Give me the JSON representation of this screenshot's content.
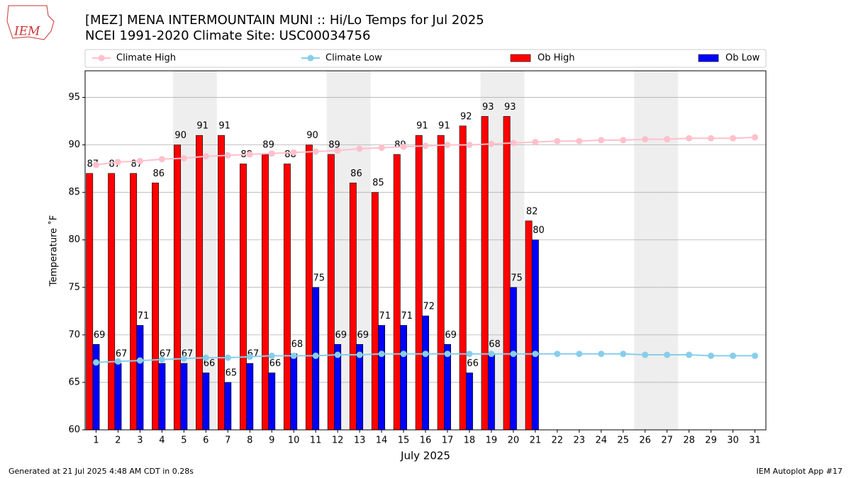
{
  "chart_data": {
    "type": "bar",
    "title": "[MEZ] MENA INTERMOUNTAIN MUNI :: Hi/Lo Temps for Jul 2025",
    "subtitle": "NCEI 1991-2020 Climate Site: USC00034756",
    "logo": "IEM",
    "x_label": "July 2025",
    "y_label": "Temperature ˚F",
    "footer_left": "Generated at 21 Jul 2025 4:48 AM CDT in 0.28s",
    "footer_right": "IEM Autoplot App #17",
    "x": [
      1,
      2,
      3,
      4,
      5,
      6,
      7,
      8,
      9,
      10,
      11,
      12,
      13,
      14,
      15,
      16,
      17,
      18,
      19,
      20,
      21,
      22,
      23,
      24,
      25,
      26,
      27,
      28,
      29,
      30,
      31
    ],
    "xlim": [
      0.5,
      31.5
    ],
    "xticks": [
      1,
      2,
      3,
      4,
      5,
      6,
      7,
      8,
      9,
      10,
      11,
      12,
      13,
      14,
      15,
      16,
      17,
      18,
      19,
      20,
      21,
      22,
      23,
      24,
      25,
      26,
      27,
      28,
      29,
      30,
      31
    ],
    "ylim": [
      60,
      97.8
    ],
    "yticks": [
      60,
      65,
      70,
      75,
      80,
      85,
      90,
      95
    ],
    "grid": true,
    "shaded_days": [
      5,
      6,
      12,
      13,
      19,
      20,
      26,
      27
    ],
    "legend": "top",
    "series": [
      {
        "name": "Climate High",
        "type": "line",
        "color": "#ffc0cb",
        "values": [
          87.9,
          88.2,
          88.3,
          88.5,
          88.6,
          88.8,
          88.9,
          89.0,
          89.1,
          89.2,
          89.3,
          89.4,
          89.6,
          89.7,
          89.8,
          89.9,
          90.0,
          90.0,
          90.1,
          90.2,
          90.3,
          90.4,
          90.4,
          90.5,
          90.5,
          90.6,
          90.6,
          90.7,
          90.7,
          90.7,
          90.8
        ]
      },
      {
        "name": "Climate Low",
        "type": "line",
        "color": "#87ceeb",
        "values": [
          67.1,
          67.2,
          67.3,
          67.4,
          67.5,
          67.6,
          67.6,
          67.7,
          67.8,
          67.8,
          67.8,
          67.9,
          67.9,
          68.0,
          68.0,
          68.0,
          68.0,
          68.0,
          68.0,
          68.0,
          68.0,
          68.0,
          68.0,
          68.0,
          68.0,
          67.9,
          67.9,
          67.9,
          67.8,
          67.8,
          67.8
        ]
      },
      {
        "name": "Ob High",
        "type": "bar",
        "color": "#ff0000",
        "values": [
          87,
          87,
          87,
          86,
          90,
          91,
          91,
          88,
          89,
          88,
          90,
          89,
          86,
          85,
          89,
          91,
          91,
          92,
          93,
          93,
          82,
          null,
          null,
          null,
          null,
          null,
          null,
          null,
          null,
          null,
          null
        ]
      },
      {
        "name": "Ob Low",
        "type": "bar",
        "color": "#0000ff",
        "values": [
          69,
          67,
          71,
          67,
          67,
          66,
          65,
          67,
          66,
          68,
          75,
          69,
          69,
          71,
          71,
          72,
          69,
          66,
          68,
          75,
          80,
          null,
          null,
          null,
          null,
          null,
          null,
          null,
          null,
          null,
          null
        ]
      }
    ]
  }
}
